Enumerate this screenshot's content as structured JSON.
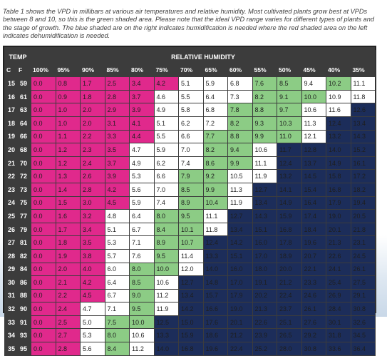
{
  "caption": "Table 1 shows the VPD in millibars at various air temperatures and relative humidity. Most cultivated plants grow best at VPDs between 8 and 10, so this is the green shaded area. Please note that the ideal VPD range varies for different types of plants and the stage of growth. The blue shaded are on the right indicates humidification is needed where the red shaded area on the left indicates dehumidification is needed.",
  "table": {
    "temp_header": "TEMP",
    "rh_header": "RELATIVE HUMIDITY",
    "unit_c": "C",
    "unit_f": "F",
    "humidity_columns": [
      "100%",
      "95%",
      "90%",
      "85%",
      "80%",
      "75%",
      "70%",
      "65%",
      "60%",
      "55%",
      "50%",
      "45%",
      "40%",
      "35%"
    ],
    "zone_colors": {
      "dehumidify": "#e0298c",
      "neutral": "#ffffff",
      "ideal": "#8ccc85",
      "humidify": "#1c2d5a"
    },
    "rows": [
      {
        "c": "15",
        "f": "59",
        "v": [
          "0.0",
          "0.8",
          "1.7",
          "2.5",
          "3.4",
          "4.2",
          "5.1",
          "5.9",
          "6.8",
          "7.6",
          "8.5",
          "9.4",
          "10.2",
          "11.1"
        ],
        "z": "rrrrrrwwwggwgw"
      },
      {
        "c": "16",
        "f": "61",
        "v": [
          "0.0",
          "0.9",
          "1.8",
          "2.8",
          "3.7",
          "4.6",
          "5.5",
          "6.4",
          "7.3",
          "8.2",
          "9.1",
          "10.0",
          "10.9",
          "11.8"
        ],
        "z": "rrrrrwwwwgggww"
      },
      {
        "c": "17",
        "f": "63",
        "v": [
          "0.0",
          "1.0",
          "2.0",
          "2.9",
          "3.9",
          "4.9",
          "5.8",
          "6.8",
          "7.8",
          "8.8",
          "9.7",
          "10.6",
          "11.6",
          "12.6"
        ],
        "z": "rrrrrwwwgggwwb"
      },
      {
        "c": "18",
        "f": "64",
        "v": [
          "0.0",
          "1.0",
          "2.0",
          "3.1",
          "4.1",
          "5.1",
          "6.2",
          "7.2",
          "8.2",
          "9.3",
          "10.3",
          "11.3",
          "12.4",
          "13.4"
        ],
        "z": "rrrrrwwwgggwbb"
      },
      {
        "c": "19",
        "f": "66",
        "v": [
          "0.0",
          "1.1",
          "2.2",
          "3.3",
          "4.4",
          "5.5",
          "6.6",
          "7.7",
          "8.8",
          "9.9",
          "11.0",
          "12.1",
          "13.2",
          "14.3"
        ],
        "z": "rrrrrwwggggwbb"
      },
      {
        "c": "20",
        "f": "68",
        "v": [
          "0.0",
          "1.2",
          "2.3",
          "3.5",
          "4.7",
          "5.9",
          "7.0",
          "8.2",
          "9.4",
          "10.6",
          "11.7",
          "12.8",
          "14.0",
          "15.2"
        ],
        "z": "rrrrwwwggwbbbb"
      },
      {
        "c": "21",
        "f": "70",
        "v": [
          "0.0",
          "1.2",
          "2.4",
          "3.7",
          "4.9",
          "6.2",
          "7.4",
          "8.6",
          "9.9",
          "11.1",
          "12.4",
          "13.7",
          "14.9",
          "16.1"
        ],
        "z": "rrrrwwwggwbbbb"
      },
      {
        "c": "22",
        "f": "72",
        "v": [
          "0.0",
          "1.3",
          "2.6",
          "3.9",
          "5.3",
          "6.6",
          "7.9",
          "9.2",
          "10.5",
          "11.9",
          "13.2",
          "14.5",
          "15.8",
          "17.2"
        ],
        "z": "rrrrwwggwwbbbb"
      },
      {
        "c": "23",
        "f": "73",
        "v": [
          "0.0",
          "1.4",
          "2.8",
          "4.2",
          "5.6",
          "7.0",
          "8.5",
          "9.9",
          "11.3",
          "12.7",
          "14.1",
          "15.4",
          "16.8",
          "18.2"
        ],
        "z": "rrrrwwggwbbbbb"
      },
      {
        "c": "24",
        "f": "75",
        "v": [
          "0.0",
          "1.5",
          "3.0",
          "4.5",
          "5.9",
          "7.4",
          "8.9",
          "10.4",
          "11.9",
          "13.4",
          "14.9",
          "16.4",
          "17.9",
          "19.4"
        ],
        "z": "rrrrwwggwbbbbb"
      },
      {
        "c": "25",
        "f": "77",
        "v": [
          "0.0",
          "1.6",
          "3.2",
          "4.8",
          "6.4",
          "8.0",
          "9.5",
          "11.1",
          "12.7",
          "14.3",
          "15.9",
          "17.4",
          "19.0",
          "20.5"
        ],
        "z": "rrrwwggwbbbbbb"
      },
      {
        "c": "26",
        "f": "79",
        "v": [
          "0.0",
          "1.7",
          "3.4",
          "5.1",
          "6.7",
          "8.4",
          "10.1",
          "11.8",
          "13.4",
          "15.1",
          "16.8",
          "18.4",
          "20.1",
          "21.8"
        ],
        "z": "rrrwwggwbbbbbb"
      },
      {
        "c": "27",
        "f": "81",
        "v": [
          "0.0",
          "1.8",
          "3.5",
          "5.3",
          "7.1",
          "8.9",
          "10.7",
          "12.4",
          "14.2",
          "16.0",
          "17.8",
          "19.6",
          "21.3",
          "23.1"
        ],
        "z": "rrrwwggbbbbbbb"
      },
      {
        "c": "28",
        "f": "82",
        "v": [
          "0.0",
          "1.9",
          "3.8",
          "5.7",
          "7.6",
          "9.5",
          "11.4",
          "13.3",
          "15.1",
          "17.0",
          "18.9",
          "20.7",
          "22.6",
          "24.5"
        ],
        "z": "rrrwwgwbbbbbbb"
      },
      {
        "c": "29",
        "f": "84",
        "v": [
          "0.0",
          "2.0",
          "4.0",
          "6.0",
          "8.0",
          "10.0",
          "12.0",
          "14.0",
          "16.0",
          "18.0",
          "20.0",
          "22.1",
          "24.1",
          "26.1"
        ],
        "z": "rrrwggwbbbbbbb"
      },
      {
        "c": "30",
        "f": "86",
        "v": [
          "0.0",
          "2.1",
          "4.2",
          "6.4",
          "8.5",
          "10.6",
          "12.7",
          "14.8",
          "17.0",
          "19.1",
          "21.2",
          "23.3",
          "25.4",
          "27.5"
        ],
        "z": "rrrwgwbbbbbbbb"
      },
      {
        "c": "31",
        "f": "88",
        "v": [
          "0.0",
          "2.2",
          "4.5",
          "6.7",
          "9.0",
          "11.2",
          "13.4",
          "15.7",
          "17.9",
          "20.2",
          "22.4",
          "24.6",
          "26.9",
          "29.1"
        ],
        "z": "rrrwgwbbbbbbbb"
      },
      {
        "c": "32",
        "f": "90",
        "v": [
          "0.0",
          "2.4",
          "4.7",
          "7.1",
          "9.5",
          "11.9",
          "14.2",
          "16.6",
          "19.0",
          "21.3",
          "23.7",
          "26.1",
          "28.4",
          "30.8"
        ],
        "z": "rrwwgwbbbbbbbb"
      },
      {
        "c": "33",
        "f": "91",
        "v": [
          "0.0",
          "2.5",
          "5.0",
          "7.5",
          "10.0",
          "12.5",
          "15.0",
          "17.6",
          "20.1",
          "22.6",
          "25.1",
          "27.6",
          "30.1",
          "32.6"
        ],
        "z": "rrwggbbbbbbbbb"
      },
      {
        "c": "34",
        "f": "93",
        "v": [
          "0.0",
          "2.7",
          "5.3",
          "8.0",
          "10.6",
          "13.3",
          "15.9",
          "18.6",
          "21.2",
          "23.9",
          "26.5",
          "29.2",
          "31.8",
          "34.5"
        ],
        "z": "rrwgwbbbbbbbbb"
      },
      {
        "c": "35",
        "f": "95",
        "v": [
          "0.0",
          "2.8",
          "5.6",
          "8.4",
          "11.2",
          "14.0",
          "16.8",
          "19.6",
          "22.4",
          "25.2",
          "28.0",
          "30.8",
          "33.6",
          "36.4"
        ],
        "z": "rrwgwbbbbbbbbb"
      }
    ]
  }
}
